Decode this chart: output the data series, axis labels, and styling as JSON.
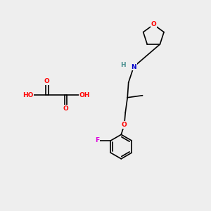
{
  "bg_color": "#eeeeee",
  "bond_color": "#000000",
  "bond_lw": 1.2,
  "atom_colors": {
    "O": "#ff0000",
    "N": "#0000cc",
    "F": "#dd00dd",
    "H": "#4a9090",
    "C": "#000000"
  },
  "font_size_atom": 6.5,
  "fig_width": 3.0,
  "fig_height": 3.0,
  "dpi": 100
}
